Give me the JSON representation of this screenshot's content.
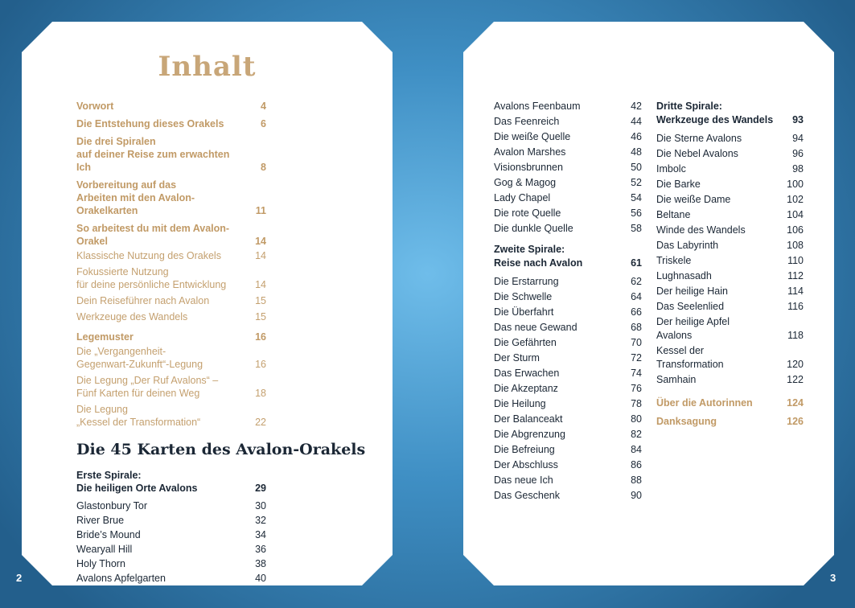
{
  "left_page": {
    "title": "Inhalt",
    "contents": [
      {
        "lines": [
          "Vorwort"
        ],
        "page": "4",
        "style": "gold b",
        "gap": "g1"
      },
      {
        "lines": [
          "Die Entstehung dieses Orakels"
        ],
        "page": "6",
        "style": "gold b",
        "gap": "g6"
      },
      {
        "lines": [
          "Die drei Spiralen",
          "auf deiner Reise zum erwachten Ich"
        ],
        "page": "8",
        "style": "gold b",
        "gap": "g6"
      },
      {
        "lines": [
          "Vorbereitung auf das",
          "Arbeiten mit den Avalon-Orakelkarten"
        ],
        "page": "11",
        "style": "gold b",
        "gap": "g6"
      },
      {
        "lines": [
          "So arbeitest du mit dem Avalon-Orakel"
        ],
        "page": "14",
        "style": "gold b",
        "gap": "g6"
      },
      {
        "lines": [
          "Klassische Nutzung des Orakels"
        ],
        "page": "14",
        "style": "gold",
        "gap": "g1"
      },
      {
        "lines": [
          "Fokussierte Nutzung",
          "für deine persönliche Entwicklung"
        ],
        "page": "14",
        "style": "gold",
        "gap": "g3"
      },
      {
        "lines": [
          "Dein Reiseführer nach Avalon"
        ],
        "page": "15",
        "style": "gold",
        "gap": "g3"
      },
      {
        "lines": [
          "Werkzeuge des Wandels"
        ],
        "page": "15",
        "style": "gold",
        "gap": "g3"
      },
      {
        "lines": [
          "Legemuster"
        ],
        "page": "16",
        "style": "gold b",
        "gap": "g9"
      },
      {
        "lines": [
          "Die „Vergangenheit-",
          "Gegenwart-Zukunft“-Legung"
        ],
        "page": "16",
        "style": "gold",
        "gap": "g1"
      },
      {
        "lines": [
          "Die Legung „Der Ruf Avalons“ –",
          "Fünf Karten für deinen Weg"
        ],
        "page": "18",
        "style": "gold",
        "gap": "g3"
      },
      {
        "lines": [
          "Die Legung",
          "„Kessel der Transformation“"
        ],
        "page": "22",
        "style": "gold",
        "gap": "g3"
      }
    ],
    "cards_heading": "Die 45 Karten des Avalon-Orakels",
    "cards": [
      {
        "lines": [
          "Erste Spirale:",
          "Die heiligen Orte Avalons"
        ],
        "page": "29",
        "style": "dark b",
        "gap": "g1"
      },
      {
        "lines": [
          "Glastonbury Tor"
        ],
        "page": "30",
        "style": "dark",
        "gap": "g6"
      },
      {
        "lines": [
          "River Brue"
        ],
        "page": "32",
        "style": "dark",
        "gap": "g1"
      },
      {
        "lines": [
          "Bride’s Mound"
        ],
        "page": "34",
        "style": "dark",
        "gap": "g1"
      },
      {
        "lines": [
          "Wearyall Hill"
        ],
        "page": "36",
        "style": "dark",
        "gap": "g1"
      },
      {
        "lines": [
          "Holy Thorn"
        ],
        "page": "38",
        "style": "dark",
        "gap": "g1"
      },
      {
        "lines": [
          "Avalons Apfelgarten"
        ],
        "page": "40",
        "style": "dark",
        "gap": "g1"
      }
    ],
    "page_number": "2"
  },
  "right_page": {
    "col1": [
      {
        "lines": [
          "Avalons Feenbaum"
        ],
        "page": "42",
        "style": "dark",
        "gap": "g1"
      },
      {
        "lines": [
          "Das Feenreich"
        ],
        "page": "44",
        "style": "dark",
        "gap": "g1"
      },
      {
        "lines": [
          "Die weiße Quelle"
        ],
        "page": "46",
        "style": "dark",
        "gap": "g1"
      },
      {
        "lines": [
          "Avalon Marshes"
        ],
        "page": "48",
        "style": "dark",
        "gap": "g1"
      },
      {
        "lines": [
          "Visionsbrunnen"
        ],
        "page": "50",
        "style": "dark",
        "gap": "g1"
      },
      {
        "lines": [
          "Gog & Magog"
        ],
        "page": "52",
        "style": "dark",
        "gap": "g1"
      },
      {
        "lines": [
          "Lady Chapel"
        ],
        "page": "54",
        "style": "dark",
        "gap": "g1"
      },
      {
        "lines": [
          "Die rote Quelle"
        ],
        "page": "56",
        "style": "dark",
        "gap": "g1"
      },
      {
        "lines": [
          "Die dunkle Quelle"
        ],
        "page": "58",
        "style": "dark",
        "gap": "g1"
      },
      {
        "lines": [
          "Zweite Spirale:",
          "Reise nach Avalon"
        ],
        "page": "61",
        "style": "dark b",
        "gap": "g9"
      },
      {
        "lines": [
          "Die Erstarrung"
        ],
        "page": "62",
        "style": "dark",
        "gap": "g6"
      },
      {
        "lines": [
          "Die Schwelle"
        ],
        "page": "64",
        "style": "dark",
        "gap": "g1"
      },
      {
        "lines": [
          "Die Überfahrt"
        ],
        "page": "66",
        "style": "dark",
        "gap": "g1"
      },
      {
        "lines": [
          "Das neue Gewand"
        ],
        "page": "68",
        "style": "dark",
        "gap": "g1"
      },
      {
        "lines": [
          "Die Gefährten"
        ],
        "page": "70",
        "style": "dark",
        "gap": "g1"
      },
      {
        "lines": [
          "Der Sturm"
        ],
        "page": "72",
        "style": "dark",
        "gap": "g1"
      },
      {
        "lines": [
          "Das Erwachen"
        ],
        "page": "74",
        "style": "dark",
        "gap": "g1"
      },
      {
        "lines": [
          "Die Akzeptanz"
        ],
        "page": "76",
        "style": "dark",
        "gap": "g1"
      },
      {
        "lines": [
          "Die Heilung"
        ],
        "page": "78",
        "style": "dark",
        "gap": "g1"
      },
      {
        "lines": [
          "Der Balanceakt"
        ],
        "page": "80",
        "style": "dark",
        "gap": "g1"
      },
      {
        "lines": [
          "Die Abgrenzung"
        ],
        "page": "82",
        "style": "dark",
        "gap": "g1"
      },
      {
        "lines": [
          "Die Befreiung"
        ],
        "page": "84",
        "style": "dark",
        "gap": "g1"
      },
      {
        "lines": [
          "Der Abschluss"
        ],
        "page": "86",
        "style": "dark",
        "gap": "g1"
      },
      {
        "lines": [
          "Das neue Ich"
        ],
        "page": "88",
        "style": "dark",
        "gap": "g1"
      },
      {
        "lines": [
          "Das Geschenk"
        ],
        "page": "90",
        "style": "dark",
        "gap": "g1"
      }
    ],
    "col2": [
      {
        "lines": [
          "Dritte Spirale:",
          "Werkzeuge des Wandels"
        ],
        "page": "93",
        "style": "dark b",
        "gap": "g1"
      },
      {
        "lines": [
          "Die Sterne Avalons"
        ],
        "page": "94",
        "style": "dark",
        "gap": "g6"
      },
      {
        "lines": [
          "Die Nebel Avalons"
        ],
        "page": "96",
        "style": "dark",
        "gap": "g1"
      },
      {
        "lines": [
          "Imbolc"
        ],
        "page": "98",
        "style": "dark",
        "gap": "g1"
      },
      {
        "lines": [
          "Die Barke"
        ],
        "page": "100",
        "style": "dark",
        "gap": "g1"
      },
      {
        "lines": [
          "Die weiße Dame"
        ],
        "page": "102",
        "style": "dark",
        "gap": "g1"
      },
      {
        "lines": [
          "Beltane"
        ],
        "page": "104",
        "style": "dark",
        "gap": "g1"
      },
      {
        "lines": [
          "Winde des Wandels"
        ],
        "page": "106",
        "style": "dark",
        "gap": "g1"
      },
      {
        "lines": [
          "Das Labyrinth"
        ],
        "page": "108",
        "style": "dark",
        "gap": "g1"
      },
      {
        "lines": [
          "Triskele"
        ],
        "page": "110",
        "style": "dark",
        "gap": "g1"
      },
      {
        "lines": [
          "Lughnasadh"
        ],
        "page": "112",
        "style": "dark",
        "gap": "g1"
      },
      {
        "lines": [
          "Der heilige Hain"
        ],
        "page": "114",
        "style": "dark",
        "gap": "g1"
      },
      {
        "lines": [
          "Das Seelenlied"
        ],
        "page": "116",
        "style": "dark",
        "gap": "g1"
      },
      {
        "lines": [
          "Der heilige Apfel",
          "Avalons"
        ],
        "page": "118",
        "style": "dark",
        "gap": "g1"
      },
      {
        "lines": [
          "Kessel der",
          "Transformation"
        ],
        "page": "120",
        "style": "dark",
        "gap": "g1"
      },
      {
        "lines": [
          "Samhain"
        ],
        "page": "122",
        "style": "dark",
        "gap": "g1"
      },
      {
        "lines": [
          "Über die Autorinnen"
        ],
        "page": "124",
        "style": "gold b",
        "gap": "g12"
      },
      {
        "lines": [
          "Danksagung"
        ],
        "page": "126",
        "style": "gold b",
        "gap": "g6"
      }
    ],
    "page_number": "3"
  }
}
